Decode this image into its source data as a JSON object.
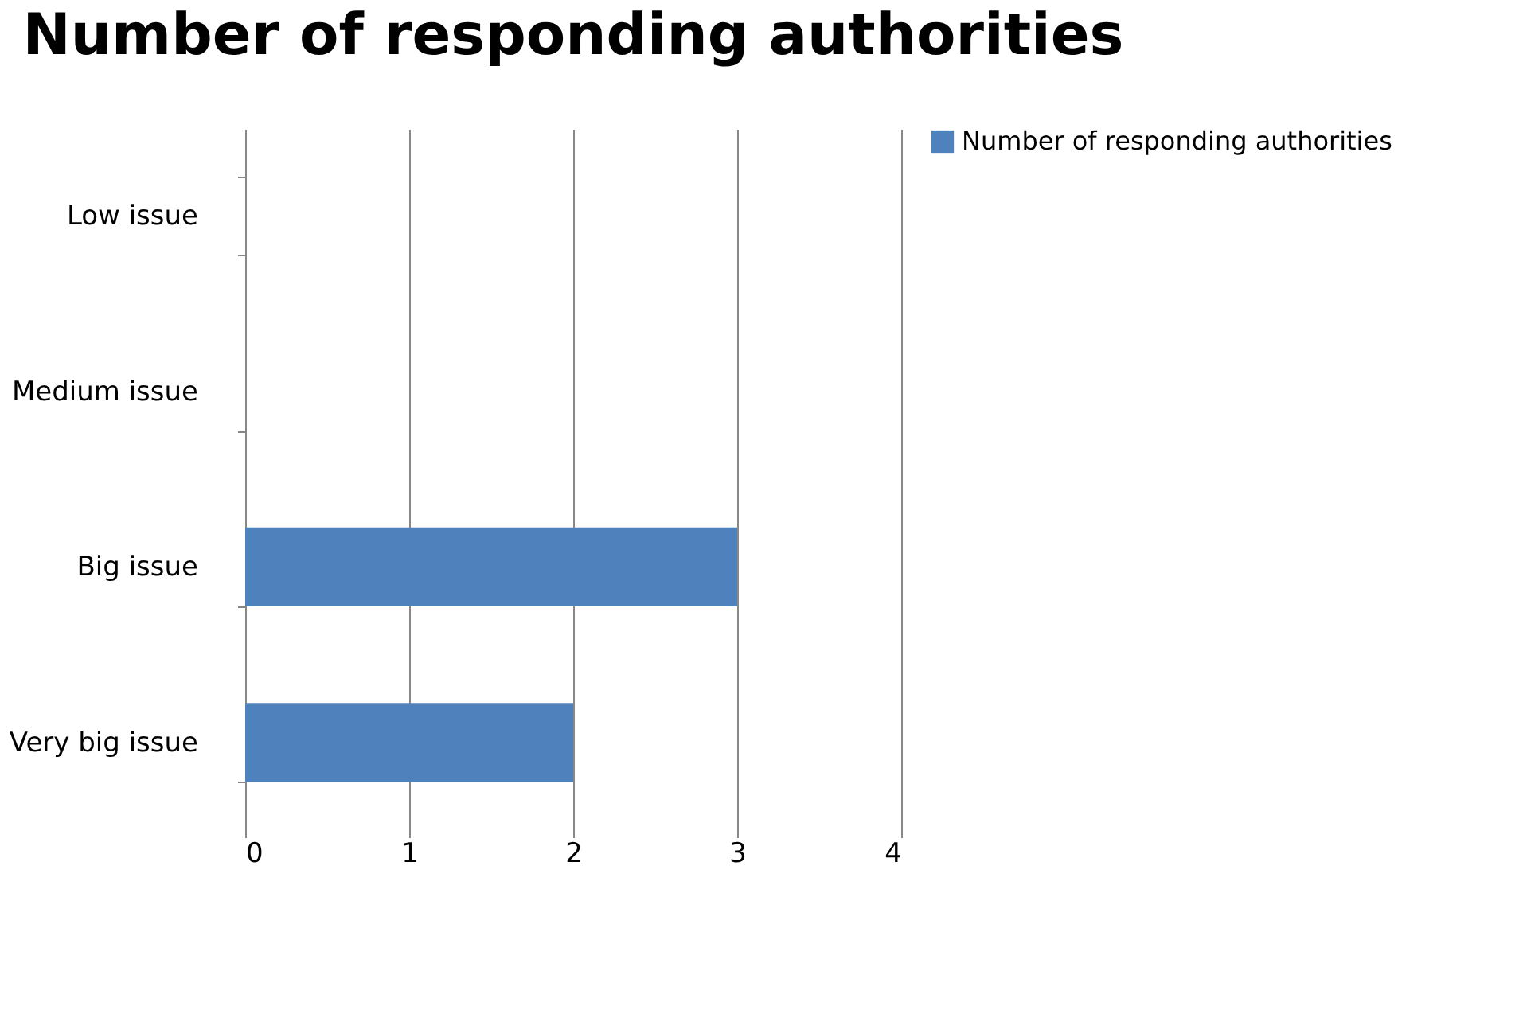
{
  "chart_data": {
    "type": "bar",
    "orientation": "horizontal",
    "title": "Number of responding authorities",
    "categories": [
      "Low issue",
      "Medium issue",
      "Big issue",
      "Very big issue"
    ],
    "series": [
      {
        "name": "Number of responding authorities",
        "color": "#4f81bd",
        "values": [
          0,
          0,
          3,
          2
        ]
      }
    ],
    "xlim": [
      0,
      4
    ],
    "xticks": [
      0,
      1,
      2,
      3,
      4
    ],
    "grid": "x",
    "legend": "right"
  }
}
